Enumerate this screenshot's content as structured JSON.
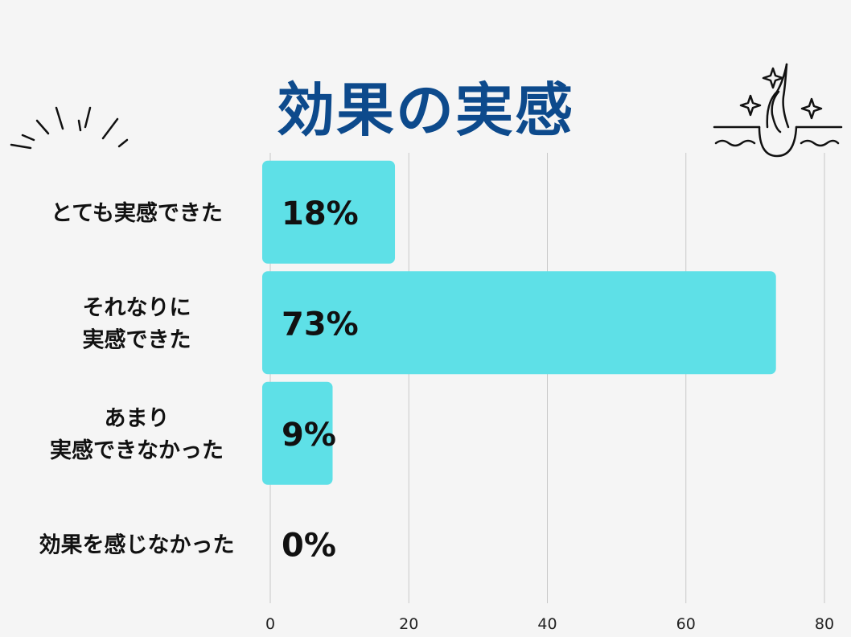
{
  "title": "効果の実感",
  "chart_data": {
    "type": "bar",
    "orientation": "horizontal",
    "title": "効果の実感",
    "categories": [
      [
        "とても実感できた"
      ],
      [
        "それなりに",
        "実感できた"
      ],
      [
        "あまり",
        "実感できなかった"
      ],
      [
        "効果を感じなかった"
      ]
    ],
    "values": [
      18,
      73,
      9,
      0
    ],
    "value_labels": [
      "18%",
      "73%",
      "9%",
      "0%"
    ],
    "xlim": [
      0,
      80
    ],
    "xticks": [
      0,
      20,
      40,
      60,
      80
    ],
    "grid": "vertical",
    "bar_color": "#5ee0e7",
    "title_color": "#0d4a8c"
  },
  "decorations": {
    "left": "burst-lines-icon",
    "right": "hair-follicle-sparkle-icon"
  }
}
